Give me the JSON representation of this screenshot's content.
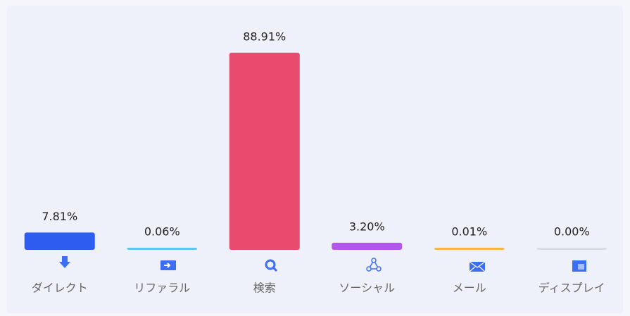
{
  "chart_data": {
    "type": "bar",
    "categories": [
      "ダイレクト",
      "リファラル",
      "検索",
      "ソーシャル",
      "メール",
      "ディスプレイ"
    ],
    "values": [
      7.81,
      0.06,
      88.91,
      3.2,
      0.01,
      0.0
    ],
    "value_labels": [
      "7.81%",
      "0.06%",
      "88.91%",
      "3.20%",
      "0.01%",
      "0.00%"
    ],
    "colors": [
      "#2f5cf0",
      "#5cc6f0",
      "#e94b6f",
      "#b356ea",
      "#f4b63e",
      "#d9dce4"
    ],
    "ylim": [
      0,
      100
    ]
  }
}
